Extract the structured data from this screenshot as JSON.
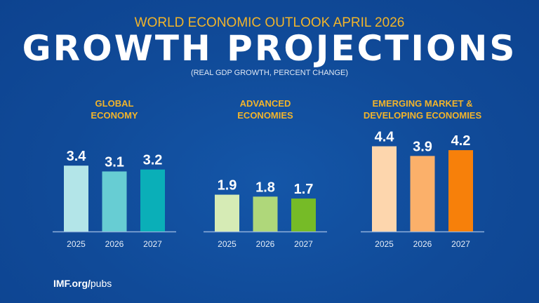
{
  "header": {
    "kicker": "WORLD ECONOMIC OUTLOOK APRIL 2026",
    "title": "GROWTH PROJECTIONS",
    "subtitle": "(REAL GDP GROWTH, PERCENT CHANGE)"
  },
  "footer": {
    "bold": "IMF.org/",
    "rest": "pubs"
  },
  "chart_data": [
    {
      "type": "bar",
      "title_lines": [
        "GLOBAL",
        "ECONOMY"
      ],
      "categories": [
        "2025",
        "2026",
        "2027"
      ],
      "values": [
        3.4,
        3.1,
        3.2
      ],
      "colors": [
        "#b3e5e8",
        "#67cdd3",
        "#0aafb8"
      ],
      "ylim": [
        0,
        5
      ]
    },
    {
      "type": "bar",
      "title_lines": [
        "ADVANCED",
        "ECONOMIES"
      ],
      "categories": [
        "2025",
        "2026",
        "2027"
      ],
      "values": [
        1.9,
        1.8,
        1.7
      ],
      "colors": [
        "#d6ebb5",
        "#afd77a",
        "#76bb27"
      ],
      "ylim": [
        0,
        5
      ]
    },
    {
      "type": "bar",
      "title_lines": [
        "EMERGING MARKET &",
        "DEVELOPING ECONOMIES"
      ],
      "categories": [
        "2025",
        "2026",
        "2027"
      ],
      "values": [
        4.4,
        3.9,
        4.2
      ],
      "colors": [
        "#fdd6ad",
        "#fbb06a",
        "#f7800a"
      ],
      "ylim": [
        0,
        5
      ]
    }
  ],
  "colors": {
    "background": "#104a98",
    "panel_title": "#f2b42a",
    "kicker": "#f2b42a"
  }
}
